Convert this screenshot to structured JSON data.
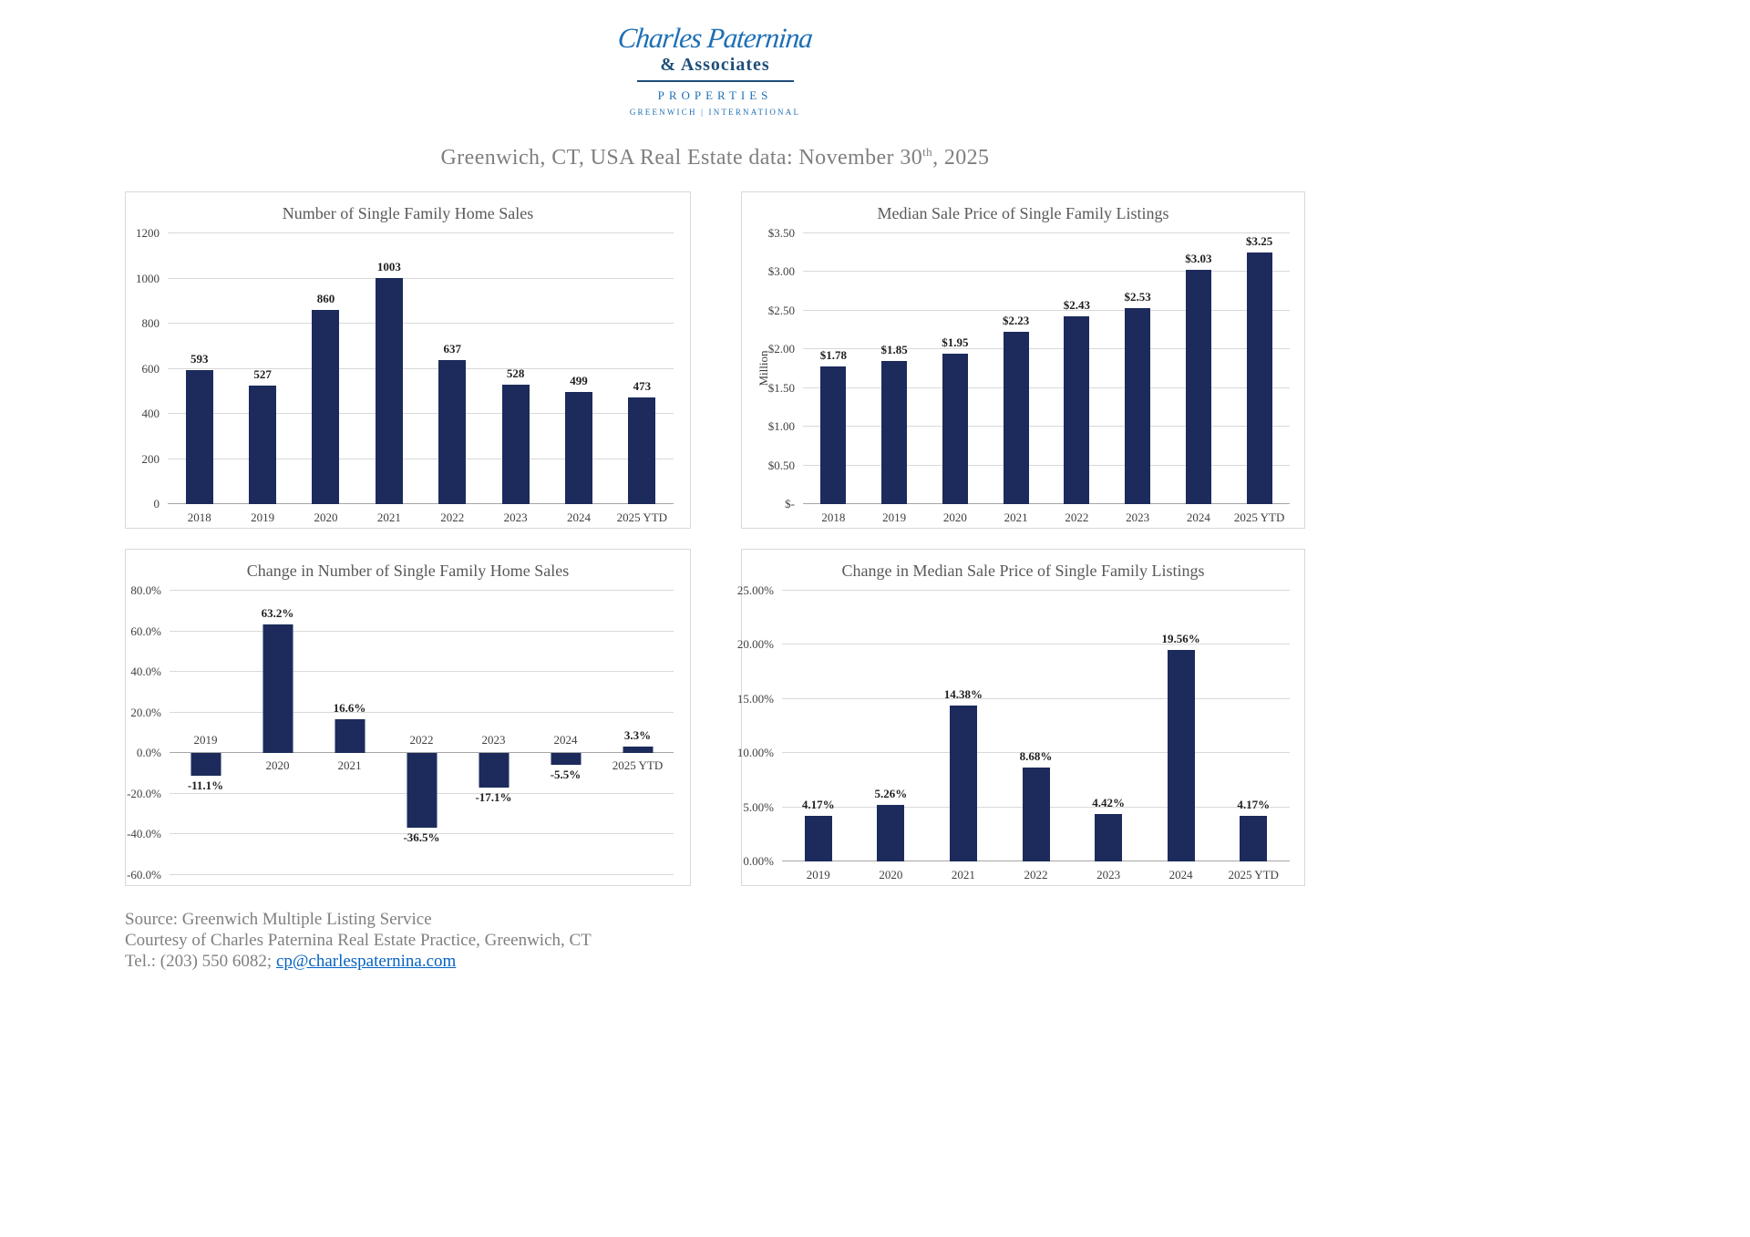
{
  "logo": {
    "name": "Charles Paternina",
    "associates": "& Associates",
    "properties": "PROPERTIES",
    "tagline": "GREENWICH | INTERNATIONAL"
  },
  "title": {
    "prefix": "Greenwich, CT, USA Real Estate data: November 30",
    "superscript": "th",
    "suffix": ", 2025"
  },
  "colors": {
    "bar": "#1C2B5C",
    "link": "#0563C1",
    "logo": "#1E6FB4",
    "logoDark": "#1F4E79"
  },
  "chart_data": [
    {
      "type": "bar",
      "title": "Number of Single Family Home Sales",
      "categories": [
        "2018",
        "2019",
        "2020",
        "2021",
        "2022",
        "2023",
        "2024",
        "2025 YTD"
      ],
      "values": [
        593,
        527,
        860,
        1003,
        637,
        528,
        499,
        473
      ],
      "data_labels": [
        "593",
        "527",
        "860",
        "1003",
        "637",
        "528",
        "499",
        "473"
      ],
      "ylim": [
        0,
        1200
      ],
      "yticks": [
        0,
        200,
        400,
        600,
        800,
        1000,
        1200
      ],
      "ytick_labels": [
        "0",
        "200",
        "400",
        "600",
        "800",
        "1000",
        "1200"
      ],
      "xlabel": "",
      "ylabel": "",
      "grid": true,
      "legend": "none",
      "xlabels_at_zero": false
    },
    {
      "type": "bar",
      "title": "Median Sale Price of Single Family Listings",
      "categories": [
        "2018",
        "2019",
        "2020",
        "2021",
        "2022",
        "2023",
        "2024",
        "2025 YTD"
      ],
      "values": [
        1.78,
        1.85,
        1.95,
        2.23,
        2.43,
        2.53,
        3.03,
        3.25
      ],
      "data_labels": [
        "$1.78",
        "$1.85",
        "$1.95",
        "$2.23",
        "$2.43",
        "$2.53",
        "$3.03",
        "$3.25"
      ],
      "ylim": [
        0,
        3.5
      ],
      "yticks": [
        0,
        0.5,
        1.0,
        1.5,
        2.0,
        2.5,
        3.0,
        3.5
      ],
      "ytick_labels": [
        "$-",
        "$0.50",
        "$1.00",
        "$1.50",
        "$2.00",
        "$2.50",
        "$3.00",
        "$3.50"
      ],
      "xlabel": "",
      "ylabel": "Million",
      "grid": true,
      "legend": "none",
      "xlabels_at_zero": false
    },
    {
      "type": "bar",
      "title": "Change in Number of Single Family Home Sales",
      "categories": [
        "2019",
        "2020",
        "2021",
        "2022",
        "2023",
        "2024",
        "2025 YTD"
      ],
      "values": [
        -11.1,
        63.2,
        16.6,
        -36.5,
        -17.1,
        -5.5,
        3.3
      ],
      "data_labels": [
        "-11.1%",
        "63.2%",
        "16.6%",
        "-36.5%",
        "-17.1%",
        "-5.5%",
        "3.3%"
      ],
      "ylim": [
        -60,
        80
      ],
      "yticks": [
        -60,
        -40,
        -20,
        0,
        20,
        40,
        60,
        80
      ],
      "ytick_labels": [
        "-60.0%",
        "-40.0%",
        "-20.0%",
        "0.0%",
        "20.0%",
        "40.0%",
        "60.0%",
        "80.0%"
      ],
      "xlabel": "",
      "ylabel": "",
      "grid": true,
      "legend": "none",
      "xlabels_at_zero": true
    },
    {
      "type": "bar",
      "title": "Change in Median Sale Price of Single Family Listings",
      "categories": [
        "2019",
        "2020",
        "2021",
        "2022",
        "2023",
        "2024",
        "2025 YTD"
      ],
      "values": [
        4.17,
        5.26,
        14.38,
        8.68,
        4.42,
        19.56,
        4.17
      ],
      "data_labels": [
        "4.17%",
        "5.26%",
        "14.38%",
        "8.68%",
        "4.42%",
        "19.56%",
        "4.17%"
      ],
      "ylim": [
        0,
        25
      ],
      "yticks": [
        0,
        5,
        10,
        15,
        20,
        25
      ],
      "ytick_labels": [
        "0.00%",
        "5.00%",
        "10.00%",
        "15.00%",
        "20.00%",
        "25.00%"
      ],
      "xlabel": "",
      "ylabel": "",
      "grid": true,
      "legend": "none",
      "xlabels_at_zero": false
    }
  ],
  "footer": {
    "source": "Source: Greenwich Multiple Listing Service",
    "courtesy": "Courtesy of Charles Paternina Real Estate Practice, Greenwich, CT",
    "tel_prefix": "Tel.: (203) 550 6082; ",
    "email": "cp@charlespaternina.com"
  }
}
